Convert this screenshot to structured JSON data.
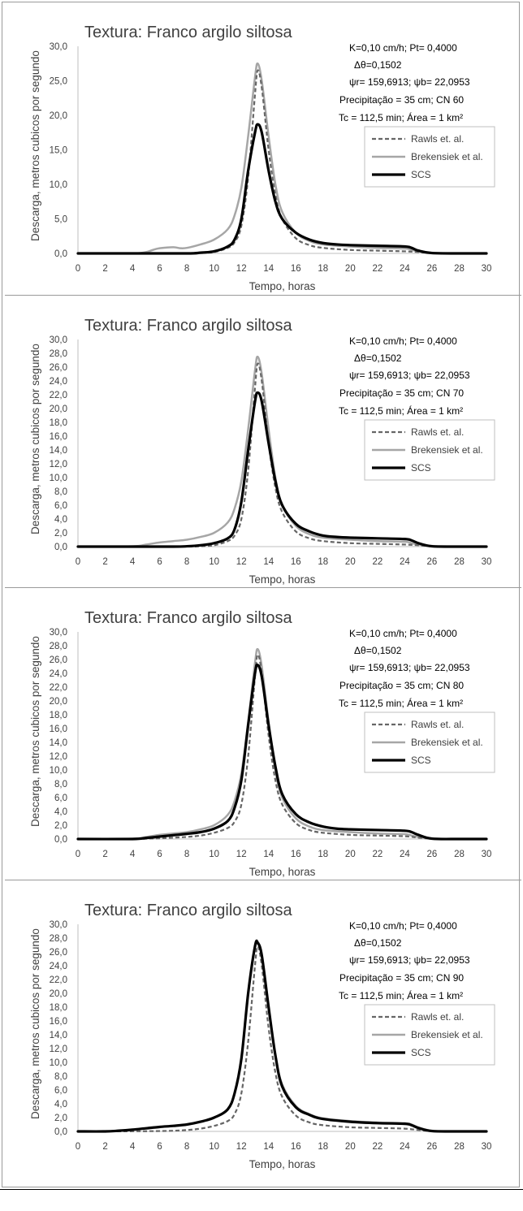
{
  "chart_data": [
    {
      "type": "line",
      "title": "Textura: Franco argilo siltosa",
      "xlabel": "Tempo, horas",
      "ylabel": "Descarga, metros cubicos por segundo",
      "xlim": [
        0,
        30
      ],
      "ylim": [
        0,
        30
      ],
      "x_ticks": [
        "0",
        "2",
        "4",
        "6",
        "8",
        "10",
        "12",
        "14",
        "16",
        "18",
        "20",
        "22",
        "24",
        "26",
        "28",
        "30"
      ],
      "y_ticks": [
        "0,0",
        "5,0",
        "10,0",
        "15,0",
        "20,0",
        "25,0",
        "30,0"
      ],
      "grid": false,
      "legend_position": "right",
      "annotations": [
        "K=0,10 cm/h; Pt= 0,4000",
        "Δθ=0,1502",
        "ψr= 159,6913;  ψb= 22,0953",
        "Precipitação = 35 cm; CN 60",
        "Tc = 112,5 min; Área = 1 km²"
      ],
      "series": [
        {
          "name": "Rawls et. al.",
          "style": "dashed",
          "color": "#666666",
          "x": [
            0,
            4,
            6,
            8,
            9,
            10,
            11,
            11.5,
            12,
            12.5,
            13,
            13.2,
            13.5,
            14,
            14.5,
            15,
            16,
            17,
            18,
            20,
            22,
            24,
            25,
            26,
            28,
            30
          ],
          "y": [
            0,
            0,
            0,
            0,
            0.05,
            0.2,
            0.8,
            1.6,
            4.0,
            11.0,
            23.0,
            26.5,
            24.0,
            15.0,
            8.5,
            5.0,
            2.2,
            1.2,
            0.8,
            0.5,
            0.4,
            0.3,
            0.2,
            0.05,
            0,
            0
          ]
        },
        {
          "name": "Brekensiek et al.",
          "style": "solid",
          "color": "#a6a6a6",
          "x": [
            0,
            4,
            5,
            5.5,
            6,
            7,
            7.5,
            8,
            9,
            10,
            11,
            11.5,
            12,
            12.5,
            13,
            13.2,
            13.5,
            14,
            14.5,
            15,
            16,
            17,
            18,
            20,
            22,
            24,
            24.5,
            25,
            26,
            28,
            30
          ],
          "y": [
            0,
            0,
            0.2,
            0.5,
            0.75,
            0.9,
            0.75,
            0.8,
            1.3,
            2.0,
            3.5,
            5.5,
            9.5,
            17.0,
            25.5,
            27.5,
            25.0,
            17.0,
            10.0,
            6.0,
            3.0,
            1.8,
            1.3,
            1.0,
            0.8,
            0.7,
            0.5,
            0.3,
            0.1,
            0,
            0
          ]
        },
        {
          "name": "SCS",
          "style": "solid",
          "color": "#000000",
          "x": [
            0,
            4,
            8,
            9,
            10,
            11,
            11.5,
            12,
            12.5,
            13,
            13.2,
            13.5,
            14,
            14.5,
            15,
            16,
            17,
            18,
            19,
            20,
            22,
            24,
            24.5,
            25,
            26,
            28,
            30
          ],
          "y": [
            0,
            0,
            0,
            0.1,
            0.3,
            1.0,
            2.0,
            5.0,
            12.0,
            17.5,
            18.7,
            17.5,
            12.0,
            7.5,
            5.0,
            3.0,
            2.0,
            1.5,
            1.3,
            1.2,
            1.1,
            1.0,
            0.8,
            0.4,
            0.05,
            0,
            0
          ]
        }
      ]
    },
    {
      "type": "line",
      "title": "Textura: Franco argilo siltosa",
      "xlabel": "Tempo, horas",
      "ylabel": "Descarga, metros cubicos por segundo",
      "xlim": [
        0,
        30
      ],
      "ylim": [
        0,
        30
      ],
      "x_ticks": [
        "0",
        "2",
        "4",
        "6",
        "8",
        "10",
        "12",
        "14",
        "16",
        "18",
        "20",
        "22",
        "24",
        "26",
        "28",
        "30"
      ],
      "y_ticks": [
        "0,0",
        "2,0",
        "4,0",
        "6,0",
        "8,0",
        "10,0",
        "12,0",
        "14,0",
        "16,0",
        "18,0",
        "20,0",
        "22,0",
        "24,0",
        "26,0",
        "28,0",
        "30,0"
      ],
      "grid": false,
      "legend_position": "right",
      "annotations": [
        "K=0,10 cm/h; Pt= 0,4000",
        "Δθ=0,1502",
        "ψr= 159,6913;  ψb= 22,0953",
        "Precipitação = 35 cm; CN 70",
        "Tc = 112,5 min; Área = 1 km²"
      ],
      "series": [
        {
          "name": "Rawls et. al.",
          "style": "dashed",
          "color": "#666666",
          "x": [
            0,
            4,
            6,
            8,
            9,
            10,
            11,
            11.5,
            12,
            12.5,
            13,
            13.2,
            13.5,
            14,
            14.5,
            15,
            16,
            17,
            18,
            20,
            22,
            24,
            25,
            26,
            28,
            30
          ],
          "y": [
            0,
            0,
            0,
            0,
            0.05,
            0.2,
            0.8,
            1.6,
            4.0,
            11.0,
            23.0,
            26.5,
            24.0,
            15.0,
            8.5,
            5.0,
            2.2,
            1.2,
            0.8,
            0.5,
            0.4,
            0.3,
            0.2,
            0.05,
            0,
            0
          ]
        },
        {
          "name": "Brekensiek et al.",
          "style": "solid",
          "color": "#a6a6a6",
          "x": [
            0,
            4,
            5,
            6,
            7,
            8,
            9,
            10,
            11,
            11.5,
            12,
            12.5,
            13,
            13.2,
            13.5,
            14,
            14.5,
            15,
            16,
            17,
            18,
            20,
            22,
            24,
            24.5,
            25,
            26,
            28,
            30
          ],
          "y": [
            0,
            0.05,
            0.3,
            0.6,
            0.8,
            1.0,
            1.4,
            2.0,
            3.5,
            5.5,
            9.5,
            17.0,
            25.5,
            27.5,
            25.0,
            17.0,
            10.0,
            6.0,
            3.0,
            1.8,
            1.3,
            1.0,
            0.8,
            0.7,
            0.5,
            0.3,
            0.1,
            0,
            0
          ]
        },
        {
          "name": "SCS",
          "style": "solid",
          "color": "#000000",
          "x": [
            0,
            4,
            7,
            8,
            9,
            10,
            11,
            11.5,
            12,
            12.5,
            13,
            13.2,
            13.5,
            14,
            14.5,
            15,
            16,
            17,
            18,
            19,
            20,
            22,
            24,
            24.5,
            25,
            26,
            28,
            30
          ],
          "y": [
            0,
            0,
            0,
            0.05,
            0.2,
            0.5,
            1.2,
            2.5,
            6.5,
            14.0,
            21.0,
            22.3,
            21.0,
            15.0,
            9.5,
            6.0,
            3.3,
            2.2,
            1.6,
            1.4,
            1.3,
            1.2,
            1.1,
            0.9,
            0.5,
            0.05,
            0,
            0
          ]
        }
      ]
    },
    {
      "type": "line",
      "title": "Textura: Franco argilo siltosa",
      "xlabel": "Tempo, horas",
      "ylabel": "Descarga, metros cubicos por segundo",
      "xlim": [
        0,
        30
      ],
      "ylim": [
        0,
        30
      ],
      "x_ticks": [
        "0",
        "2",
        "4",
        "6",
        "8",
        "10",
        "12",
        "14",
        "16",
        "18",
        "20",
        "22",
        "24",
        "26",
        "28",
        "30"
      ],
      "y_ticks": [
        "0,0",
        "2,0",
        "4,0",
        "6,0",
        "8,0",
        "10,0",
        "12,0",
        "14,0",
        "16,0",
        "18,0",
        "20,0",
        "22,0",
        "24,0",
        "26,0",
        "28,0",
        "30,0"
      ],
      "grid": false,
      "legend_position": "right",
      "annotations": [
        "K=0,10 cm/h; Pt= 0,4000",
        "Δθ=0,1502",
        "ψr= 159,6913;  ψb= 22,0953",
        "Precipitação = 35 cm; CN 80",
        "Tc = 112,5 min; Área = 1 km²"
      ],
      "series": [
        {
          "name": "Rawls et. al.",
          "style": "dashed",
          "color": "#666666",
          "x": [
            0,
            4,
            5,
            6,
            7,
            8,
            9,
            10,
            11,
            11.5,
            12,
            12.5,
            13,
            13.2,
            13.5,
            14,
            14.5,
            15,
            16,
            17,
            18,
            20,
            22,
            24,
            25,
            26,
            28,
            30
          ],
          "y": [
            0,
            0,
            0.05,
            0.1,
            0.2,
            0.3,
            0.5,
            0.9,
            1.6,
            2.5,
            5.0,
            12.0,
            23.5,
            26.7,
            24.0,
            15.0,
            8.5,
            5.0,
            2.3,
            1.3,
            0.9,
            0.6,
            0.5,
            0.4,
            0.2,
            0.05,
            0,
            0
          ]
        },
        {
          "name": "Brekensiek et al.",
          "style": "solid",
          "color": "#a6a6a6",
          "x": [
            0,
            4,
            5,
            6,
            7,
            8,
            9,
            10,
            11,
            11.5,
            12,
            12.5,
            13,
            13.2,
            13.5,
            14,
            14.5,
            15,
            16,
            17,
            18,
            20,
            22,
            24,
            24.5,
            25,
            26,
            28,
            30
          ],
          "y": [
            0,
            0.05,
            0.3,
            0.6,
            0.8,
            1.0,
            1.4,
            2.0,
            3.5,
            5.5,
            9.5,
            17.0,
            25.5,
            27.5,
            25.0,
            17.0,
            10.0,
            6.0,
            3.0,
            1.8,
            1.3,
            1.0,
            0.8,
            0.7,
            0.5,
            0.3,
            0.1,
            0,
            0
          ]
        },
        {
          "name": "SCS",
          "style": "solid",
          "color": "#000000",
          "x": [
            0,
            4,
            5,
            6,
            7,
            8,
            9,
            10,
            11,
            11.5,
            12,
            12.5,
            13,
            13.2,
            13.5,
            14,
            14.5,
            15,
            16,
            17,
            18,
            19,
            20,
            22,
            24,
            24.5,
            25,
            26,
            28,
            30
          ],
          "y": [
            0,
            0,
            0.15,
            0.35,
            0.55,
            0.75,
            1.0,
            1.5,
            2.6,
            4.5,
            8.5,
            16.5,
            24.0,
            25.2,
            23.5,
            16.5,
            10.5,
            6.5,
            3.6,
            2.4,
            1.8,
            1.5,
            1.4,
            1.3,
            1.2,
            1.0,
            0.6,
            0.05,
            0,
            0
          ]
        }
      ]
    },
    {
      "type": "line",
      "title": "Textura: Franco argilo siltosa",
      "xlabel": "Tempo, horas",
      "ylabel": "Descarga, metros cubicos por segundo",
      "xlim": [
        0,
        30
      ],
      "ylim": [
        0,
        30
      ],
      "x_ticks": [
        "0",
        "2",
        "4",
        "6",
        "8",
        "10",
        "12",
        "14",
        "16",
        "18",
        "20",
        "22",
        "24",
        "26",
        "28",
        "30"
      ],
      "y_ticks": [
        "0,0",
        "2,0",
        "4,0",
        "6,0",
        "8,0",
        "10,0",
        "12,0",
        "14,0",
        "16,0",
        "18,0",
        "20,0",
        "22,0",
        "24,0",
        "26,0",
        "28,0",
        "30,0"
      ],
      "grid": false,
      "legend_position": "right",
      "annotations": [
        "K=0,10 cm/h; Pt= 0,4000",
        "Δθ=0,1502",
        "ψr= 159,6913;  ψb= 22,0953",
        "Precipitação = 35 cm; CN 90",
        "Tc = 112,5 min; Área = 1 km²"
      ],
      "series": [
        {
          "name": "Rawls et. al.",
          "style": "dashed",
          "color": "#666666",
          "x": [
            0,
            4,
            6,
            7,
            8,
            9,
            10,
            11,
            11.5,
            12,
            12.5,
            13,
            13.2,
            13.5,
            14,
            14.5,
            15,
            16,
            17,
            18,
            20,
            22,
            24,
            25,
            26,
            28,
            30
          ],
          "y": [
            0,
            0.02,
            0.05,
            0.1,
            0.2,
            0.4,
            0.8,
            1.5,
            2.5,
            5.5,
            13.0,
            24.0,
            26.8,
            24.0,
            15.0,
            8.5,
            5.0,
            2.3,
            1.3,
            0.9,
            0.6,
            0.5,
            0.4,
            0.2,
            0.05,
            0,
            0
          ]
        },
        {
          "name": "Brekensiek et al.",
          "style": "solid",
          "color": "#a6a6a6",
          "x": [
            0,
            2,
            3,
            4,
            5,
            6,
            7,
            8,
            9,
            10,
            11,
            11.5,
            12,
            12.5,
            13,
            13.2,
            13.5,
            14,
            14.5,
            15,
            16,
            17,
            18,
            20,
            22,
            24,
            24.5,
            25,
            26,
            28,
            30
          ],
          "y": [
            0,
            0,
            0.1,
            0.25,
            0.45,
            0.65,
            0.8,
            1.0,
            1.4,
            2.0,
            3.2,
            5.5,
            10.5,
            20.0,
            26.8,
            27.5,
            25.5,
            18.0,
            11.0,
            6.8,
            3.7,
            2.5,
            1.9,
            1.5,
            1.3,
            1.2,
            1.0,
            0.6,
            0.1,
            0,
            0
          ]
        },
        {
          "name": "SCS",
          "style": "solid",
          "color": "#000000",
          "x": [
            0,
            2,
            3,
            4,
            5,
            6,
            7,
            8,
            9,
            10,
            11,
            11.5,
            12,
            12.5,
            13,
            13.2,
            13.5,
            14,
            14.5,
            15,
            16,
            17,
            18,
            20,
            22,
            24,
            24.5,
            25,
            26,
            28,
            30
          ],
          "y": [
            0,
            0,
            0.1,
            0.25,
            0.45,
            0.65,
            0.8,
            1.0,
            1.4,
            2.0,
            3.2,
            5.5,
            10.5,
            20.0,
            26.8,
            27.3,
            25.5,
            18.0,
            11.0,
            6.5,
            3.5,
            2.4,
            1.8,
            1.4,
            1.2,
            1.1,
            0.9,
            0.5,
            0.05,
            0,
            0
          ]
        }
      ]
    }
  ]
}
